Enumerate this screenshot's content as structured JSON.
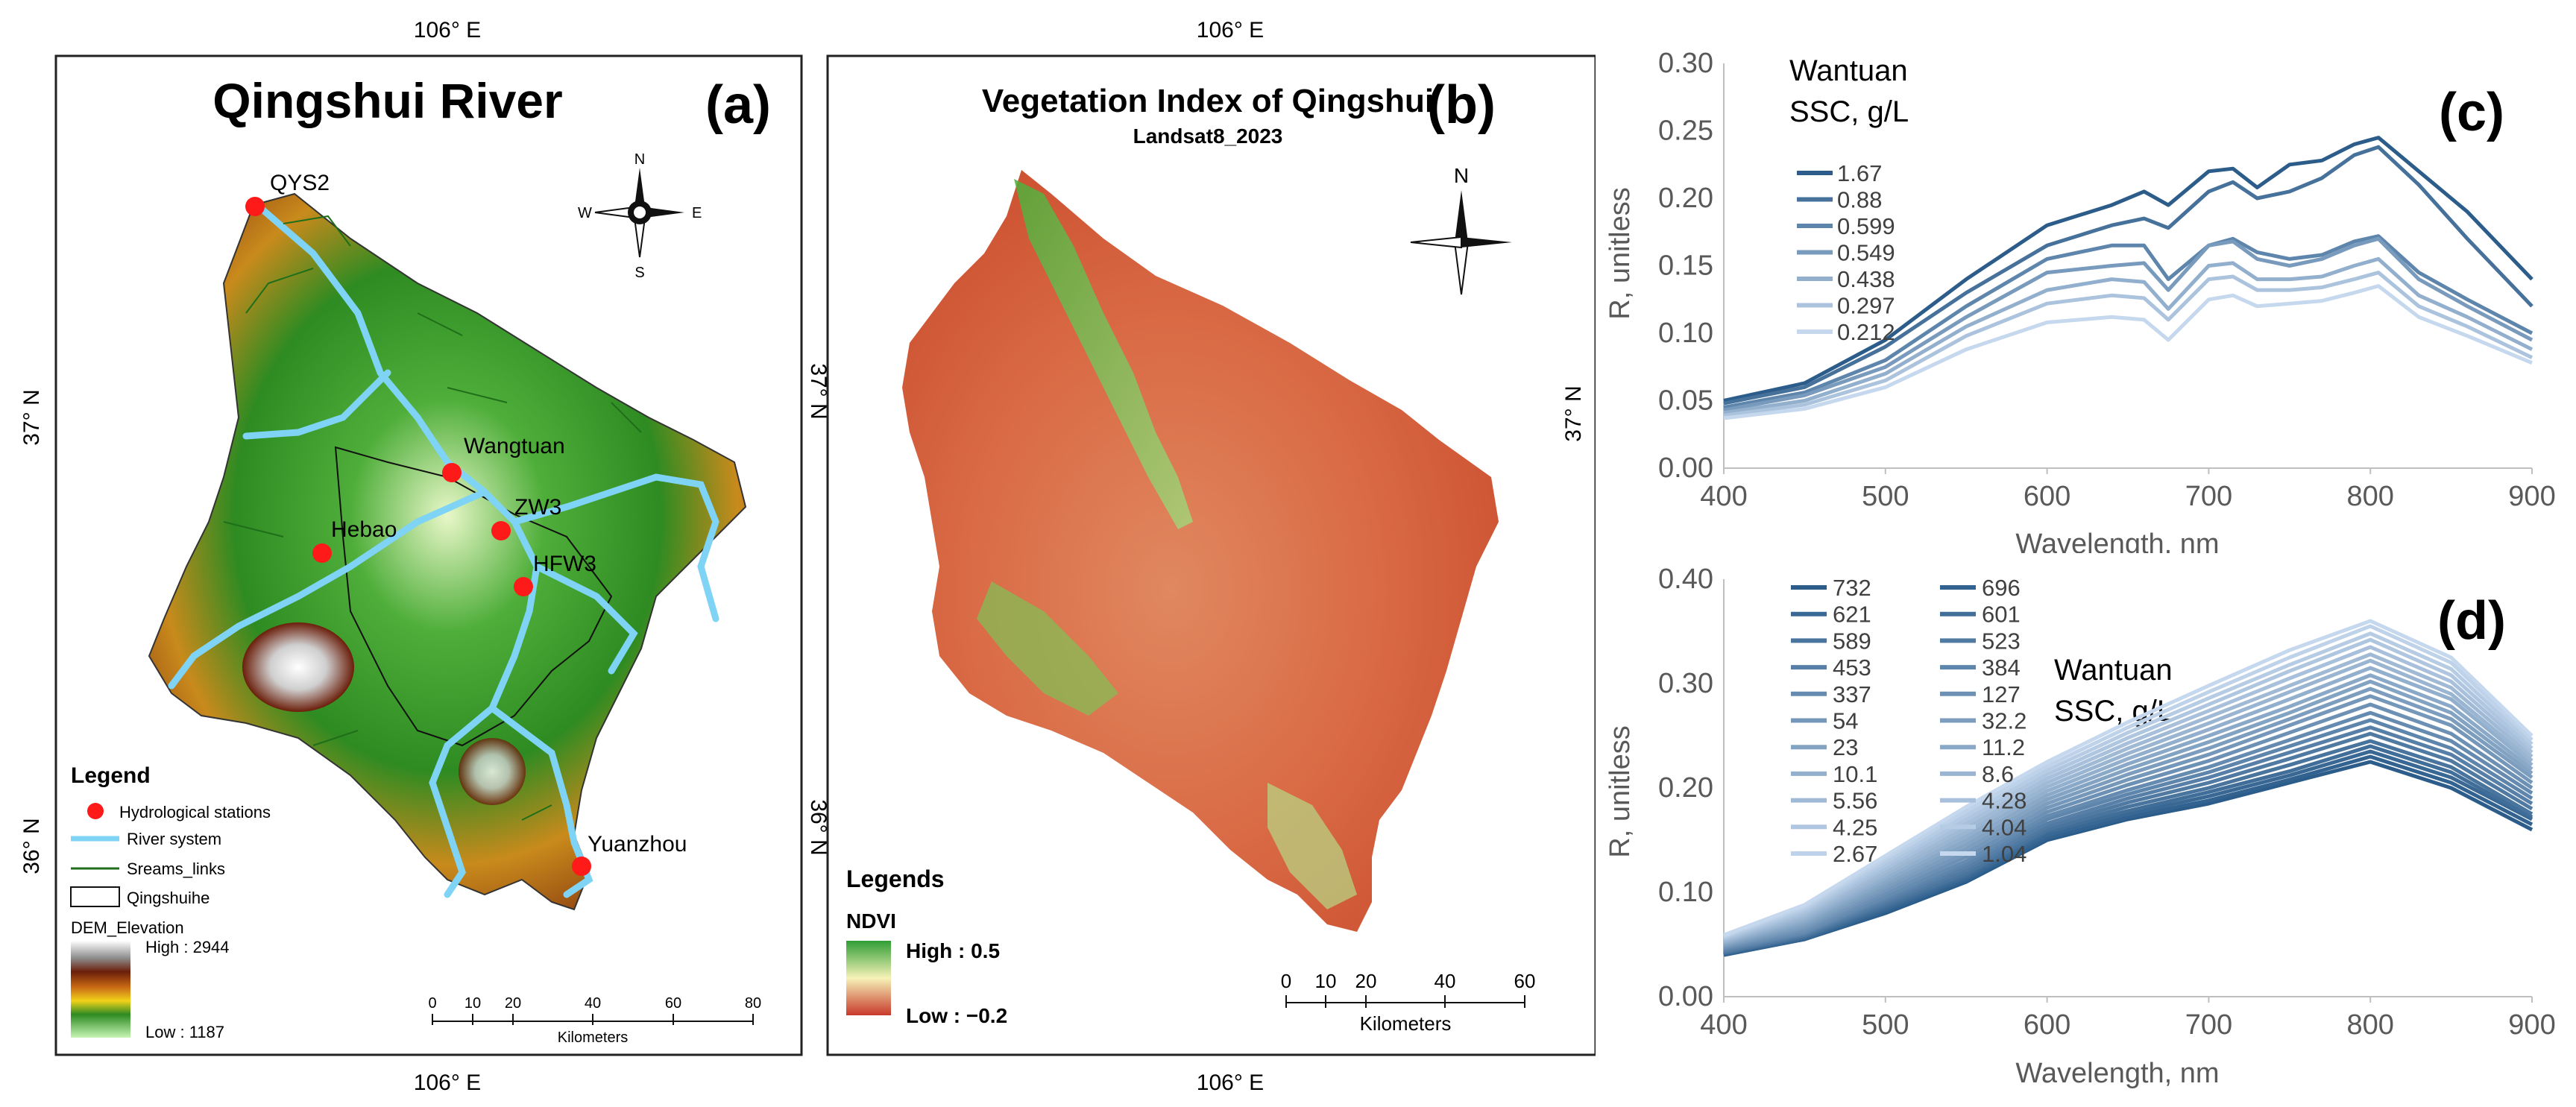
{
  "colors": {
    "dem_high": "#ffffff",
    "dem_mid": "#8b4513",
    "dem_green": "#2e8b22",
    "dem_low": "#b8f0a8",
    "river": "#7fd3f5",
    "station": "#ff1a1a",
    "ndvi_high": "#2f9e35",
    "ndvi_low": "#c8392b",
    "series_dark": "#2b5c8a",
    "series_light": "#c5d8ee"
  },
  "map_a": {
    "label": "(a)",
    "title": "Qingshui River",
    "top_lon": "106° E",
    "bottom_lon": "106° E",
    "lat_37": "37° N",
    "lat_36": "36° N",
    "compass": {
      "n": "N",
      "s": "S",
      "e": "E",
      "w": "W",
      "icon": "compass-rose-icon"
    },
    "stations": [
      {
        "name": "QYS2"
      },
      {
        "name": "Wangtuan"
      },
      {
        "name": "ZW3"
      },
      {
        "name": "Hebao"
      },
      {
        "name": "HFW3"
      },
      {
        "name": "Yuanzhou"
      }
    ],
    "legend": {
      "title": "Legend",
      "items": [
        "Hydrological stations",
        "River system",
        "Sreams_links",
        "Qingshuihe"
      ],
      "dem_title": "DEM_Elevation",
      "dem_high": "High : 2944",
      "dem_low": "Low : 1187"
    },
    "scale": {
      "ticks": [
        "0",
        "10",
        "20",
        "40",
        "60",
        "80"
      ],
      "unit": "Kilometers"
    }
  },
  "map_b": {
    "label": "(b)",
    "title": "Vegetation Index of Qingshui",
    "subtitle": "Landsat8_2023",
    "top_lon": "106° E",
    "bottom_lon": "106° E",
    "lat_37": "37° N",
    "lat_36": "36° N",
    "compass_n": "N",
    "legend": {
      "title": "Legends",
      "layer": "NDVI",
      "high": "High : 0.5",
      "low": "Low : −0.2"
    },
    "scale": {
      "ticks": [
        "0",
        "10",
        "20",
        "40",
        "60"
      ],
      "unit": "Kilometers"
    }
  },
  "chart_data": [
    {
      "id": "c",
      "type": "line",
      "panel_label": "(c)",
      "title": "",
      "xlabel": "Wavelength, nm",
      "ylabel": "R, unitless",
      "xlim": [
        400,
        900
      ],
      "ylim": [
        0.0,
        0.3
      ],
      "xticks": [
        "400",
        "500",
        "600",
        "700",
        "800",
        "900"
      ],
      "yticks": [
        "0.00",
        "0.05",
        "0.10",
        "0.15",
        "0.20",
        "0.25",
        "0.30"
      ],
      "legend_title_1": "Wantuan",
      "legend_title_2": "SSC, g/L",
      "x": [
        400,
        450,
        500,
        550,
        600,
        640,
        660,
        675,
        700,
        715,
        730,
        750,
        770,
        790,
        805,
        830,
        860,
        900
      ],
      "series": [
        {
          "name": "1.67",
          "values": [
            0.05,
            0.063,
            0.095,
            0.14,
            0.18,
            0.195,
            0.205,
            0.195,
            0.22,
            0.222,
            0.208,
            0.225,
            0.228,
            0.24,
            0.245,
            0.22,
            0.19,
            0.14
          ]
        },
        {
          "name": "0.88",
          "values": [
            0.048,
            0.06,
            0.09,
            0.13,
            0.165,
            0.18,
            0.185,
            0.178,
            0.205,
            0.212,
            0.2,
            0.205,
            0.215,
            0.232,
            0.238,
            0.21,
            0.17,
            0.12
          ]
        },
        {
          "name": "0.599",
          "values": [
            0.045,
            0.056,
            0.08,
            0.12,
            0.155,
            0.165,
            0.165,
            0.14,
            0.165,
            0.17,
            0.16,
            0.155,
            0.158,
            0.168,
            0.172,
            0.145,
            0.125,
            0.1
          ]
        },
        {
          "name": "0.549",
          "values": [
            0.043,
            0.054,
            0.075,
            0.112,
            0.145,
            0.15,
            0.152,
            0.132,
            0.165,
            0.168,
            0.155,
            0.15,
            0.155,
            0.165,
            0.17,
            0.14,
            0.12,
            0.095
          ]
        },
        {
          "name": "0.438",
          "values": [
            0.041,
            0.05,
            0.07,
            0.105,
            0.132,
            0.14,
            0.138,
            0.118,
            0.15,
            0.152,
            0.14,
            0.14,
            0.142,
            0.15,
            0.155,
            0.128,
            0.112,
            0.088
          ]
        },
        {
          "name": "0.297",
          "values": [
            0.039,
            0.047,
            0.065,
            0.098,
            0.122,
            0.128,
            0.126,
            0.11,
            0.14,
            0.142,
            0.132,
            0.132,
            0.134,
            0.14,
            0.145,
            0.12,
            0.105,
            0.082
          ]
        },
        {
          "name": "0.212",
          "values": [
            0.037,
            0.044,
            0.06,
            0.088,
            0.108,
            0.112,
            0.11,
            0.095,
            0.125,
            0.128,
            0.12,
            0.122,
            0.124,
            0.13,
            0.135,
            0.112,
            0.098,
            0.078
          ]
        }
      ]
    },
    {
      "id": "d",
      "type": "line",
      "panel_label": "(d)",
      "title": "",
      "xlabel": "Wavelength, nm",
      "ylabel": "R, unitless",
      "xlim": [
        400,
        900
      ],
      "ylim": [
        0.0,
        0.4
      ],
      "xticks": [
        "400",
        "500",
        "600",
        "700",
        "800",
        "900"
      ],
      "yticks": [
        "0.00",
        "0.10",
        "0.20",
        "0.30",
        "0.40"
      ],
      "legend_title_1": "Wantuan",
      "legend_title_2": "SSC, g/L",
      "legend_col1": [
        "732",
        "621",
        "589",
        "453",
        "337",
        "54",
        "23",
        "10.1",
        "5.56",
        "4.25",
        "2.67"
      ],
      "legend_col2": [
        "696",
        "601",
        "523",
        "384",
        "127",
        "32.2",
        "11.2",
        "8.6",
        "4.28",
        "4.04",
        "1.04"
      ],
      "x": [
        400,
        450,
        500,
        550,
        600,
        650,
        700,
        750,
        800,
        850,
        900
      ],
      "series": [
        {
          "name": "732",
          "values": [
            0.04,
            0.055,
            0.08,
            0.11,
            0.15,
            0.17,
            0.185,
            0.205,
            0.225,
            0.2,
            0.16
          ]
        },
        {
          "name": "696",
          "values": [
            0.04,
            0.055,
            0.082,
            0.112,
            0.152,
            0.172,
            0.188,
            0.208,
            0.23,
            0.205,
            0.165
          ]
        },
        {
          "name": "621",
          "values": [
            0.041,
            0.056,
            0.084,
            0.114,
            0.155,
            0.175,
            0.192,
            0.212,
            0.235,
            0.21,
            0.17
          ]
        },
        {
          "name": "601",
          "values": [
            0.042,
            0.057,
            0.086,
            0.116,
            0.158,
            0.178,
            0.196,
            0.216,
            0.24,
            0.215,
            0.172
          ]
        },
        {
          "name": "589",
          "values": [
            0.042,
            0.058,
            0.088,
            0.118,
            0.16,
            0.182,
            0.2,
            0.222,
            0.245,
            0.22,
            0.175
          ]
        },
        {
          "name": "523",
          "values": [
            0.043,
            0.059,
            0.09,
            0.121,
            0.163,
            0.186,
            0.205,
            0.228,
            0.252,
            0.226,
            0.18
          ]
        },
        {
          "name": "453",
          "values": [
            0.044,
            0.06,
            0.092,
            0.124,
            0.166,
            0.19,
            0.21,
            0.234,
            0.258,
            0.232,
            0.185
          ]
        },
        {
          "name": "384",
          "values": [
            0.045,
            0.061,
            0.094,
            0.127,
            0.17,
            0.194,
            0.215,
            0.24,
            0.265,
            0.238,
            0.19
          ]
        },
        {
          "name": "337",
          "values": [
            0.046,
            0.062,
            0.096,
            0.13,
            0.173,
            0.198,
            0.22,
            0.246,
            0.272,
            0.245,
            0.195
          ]
        },
        {
          "name": "127",
          "values": [
            0.047,
            0.064,
            0.099,
            0.134,
            0.177,
            0.203,
            0.226,
            0.253,
            0.28,
            0.252,
            0.2
          ]
        },
        {
          "name": "54",
          "values": [
            0.048,
            0.066,
            0.102,
            0.138,
            0.181,
            0.208,
            0.232,
            0.26,
            0.288,
            0.26,
            0.205
          ]
        },
        {
          "name": "32.2",
          "values": [
            0.049,
            0.068,
            0.105,
            0.142,
            0.185,
            0.213,
            0.238,
            0.266,
            0.295,
            0.266,
            0.21
          ]
        },
        {
          "name": "23",
          "values": [
            0.05,
            0.07,
            0.108,
            0.146,
            0.189,
            0.218,
            0.244,
            0.272,
            0.302,
            0.272,
            0.214
          ]
        },
        {
          "name": "11.2",
          "values": [
            0.051,
            0.072,
            0.111,
            0.15,
            0.193,
            0.223,
            0.25,
            0.278,
            0.308,
            0.278,
            0.218
          ]
        },
        {
          "name": "10.1",
          "values": [
            0.052,
            0.074,
            0.114,
            0.154,
            0.197,
            0.228,
            0.256,
            0.285,
            0.315,
            0.285,
            0.222
          ]
        },
        {
          "name": "8.6",
          "values": [
            0.053,
            0.076,
            0.117,
            0.158,
            0.201,
            0.233,
            0.262,
            0.292,
            0.322,
            0.29,
            0.226
          ]
        },
        {
          "name": "5.56",
          "values": [
            0.054,
            0.078,
            0.12,
            0.162,
            0.205,
            0.238,
            0.268,
            0.298,
            0.328,
            0.296,
            0.23
          ]
        },
        {
          "name": "4.28",
          "values": [
            0.055,
            0.08,
            0.123,
            0.166,
            0.209,
            0.243,
            0.274,
            0.305,
            0.335,
            0.302,
            0.234
          ]
        },
        {
          "name": "4.25",
          "values": [
            0.056,
            0.082,
            0.126,
            0.17,
            0.213,
            0.248,
            0.28,
            0.312,
            0.342,
            0.308,
            0.238
          ]
        },
        {
          "name": "4.04",
          "values": [
            0.057,
            0.084,
            0.129,
            0.174,
            0.217,
            0.253,
            0.286,
            0.318,
            0.348,
            0.314,
            0.242
          ]
        },
        {
          "name": "2.67",
          "values": [
            0.058,
            0.086,
            0.132,
            0.178,
            0.221,
            0.258,
            0.292,
            0.325,
            0.355,
            0.32,
            0.246
          ]
        },
        {
          "name": "1.04",
          "values": [
            0.059,
            0.088,
            0.135,
            0.182,
            0.225,
            0.263,
            0.298,
            0.332,
            0.36,
            0.325,
            0.25
          ]
        }
      ]
    }
  ]
}
